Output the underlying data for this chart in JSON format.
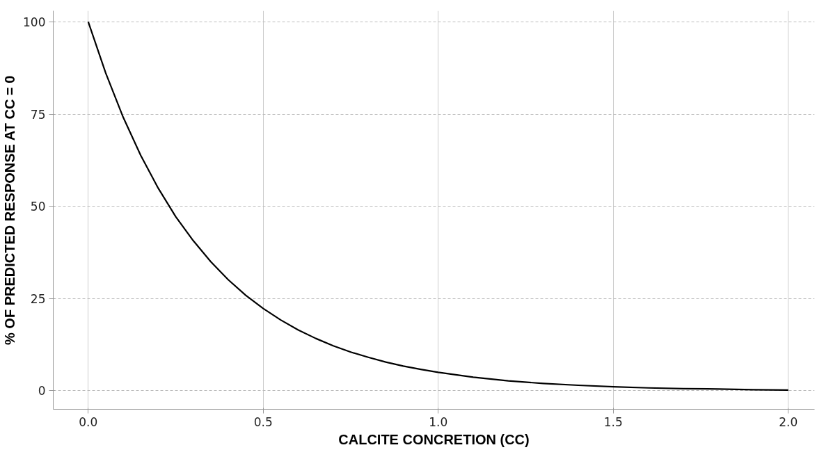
{
  "chart_data": {
    "type": "line",
    "xlabel": "CALCITE CONCRETION (CC)",
    "ylabel": "% OF PREDICTED RESPONSE AT CC = 0",
    "x": [
      0,
      0.05,
      0.1,
      0.15,
      0.2,
      0.25,
      0.3,
      0.35,
      0.4,
      0.45,
      0.5,
      0.55,
      0.6,
      0.65,
      0.7,
      0.75,
      0.8,
      0.85,
      0.9,
      0.95,
      1.0,
      1.1,
      1.2,
      1.3,
      1.4,
      1.5,
      1.6,
      1.7,
      1.8,
      1.9,
      2.0
    ],
    "series": [
      {
        "color": "#000000",
        "values": [
          100,
          86.1,
          74.1,
          63.8,
          54.9,
          47.2,
          40.7,
          35.0,
          30.1,
          25.9,
          22.3,
          19.2,
          16.5,
          14.2,
          12.2,
          10.5,
          9.1,
          7.8,
          6.7,
          5.8,
          5.0,
          3.7,
          2.7,
          2.0,
          1.5,
          1.1,
          0.8,
          0.6,
          0.5,
          0.3,
          0.2
        ]
      }
    ],
    "xlim": [
      -0.1,
      2.075
    ],
    "ylim": [
      -5,
      103
    ],
    "xticks": [
      {
        "value": 0,
        "label": "0.0"
      },
      0.5,
      {
        "value": 1,
        "label": "1.0"
      },
      1.5,
      {
        "value": 2,
        "label": "2.0"
      }
    ],
    "yticks": [
      0,
      25,
      50,
      75,
      100
    ],
    "grid": true,
    "marker": "none",
    "line_style": "solid"
  }
}
